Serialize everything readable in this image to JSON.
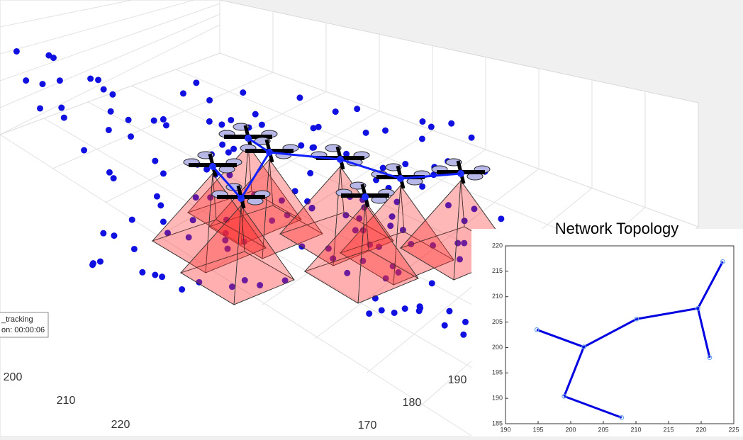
{
  "scene": {
    "x_ticks": [
      200,
      210,
      220
    ],
    "y_ticks": [
      190,
      180,
      170
    ],
    "tooltip": [
      "_tracking",
      "on: 00:00:06"
    ]
  },
  "chart_data": {
    "type": "network",
    "title": "Network Topology",
    "x": [
      194.8,
      202,
      199,
      207.8,
      210.1,
      219.5,
      223.3,
      221.3
    ],
    "y": [
      203.5,
      200.1,
      190.4,
      186.2,
      205.6,
      207.7,
      216.9,
      198
    ],
    "edges": [
      [
        0,
        1
      ],
      [
        1,
        2
      ],
      [
        2,
        3
      ],
      [
        1,
        4
      ],
      [
        4,
        5
      ],
      [
        5,
        6
      ],
      [
        5,
        7
      ]
    ],
    "color": "#0000e0",
    "marker_color": "#6aa6e8",
    "xlim": [
      190,
      225
    ],
    "xticks": [
      190,
      195,
      200,
      205,
      210,
      215,
      220,
      225
    ],
    "ylim": [
      185,
      220
    ],
    "yticks": [
      185,
      190,
      195,
      200,
      205,
      210,
      215,
      220
    ]
  }
}
